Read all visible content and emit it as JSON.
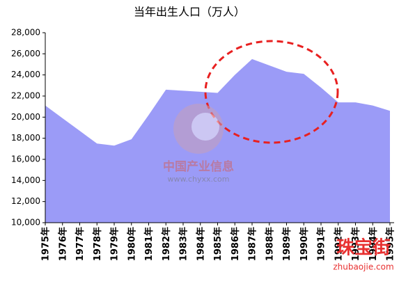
{
  "chart_data": {
    "type": "area",
    "title": "当年出生人口（万人）",
    "categories": [
      "1975年",
      "1976年",
      "1977年",
      "1978年",
      "1979年",
      "1980年",
      "1981年",
      "1982年",
      "1983年",
      "1984年",
      "1985年",
      "1986年",
      "1987年",
      "1988年",
      "1989年",
      "1990年",
      "1991年",
      "1992年",
      "1993年",
      "1994年",
      "1995年"
    ],
    "values": [
      21100,
      19900,
      18700,
      17500,
      17300,
      17900,
      20200,
      22600,
      22500,
      22400,
      22300,
      24000,
      25500,
      24900,
      24300,
      24100,
      22800,
      21400,
      21400,
      21100,
      20600
    ],
    "color": "#9b9bf7",
    "ylim": [
      10000,
      28000
    ],
    "yticks": [
      {
        "value": 10000,
        "label": "10,000"
      },
      {
        "value": 12000,
        "label": "12,000"
      },
      {
        "value": 14000,
        "label": "14,000"
      },
      {
        "value": 16000,
        "label": "16,000"
      },
      {
        "value": 18000,
        "label": "18,000"
      },
      {
        "value": 20000,
        "label": "20,000"
      },
      {
        "value": 22000,
        "label": "22,000"
      },
      {
        "value": 24000,
        "label": "24,000"
      },
      {
        "value": 26000,
        "label": "26,000"
      },
      {
        "value": 28000,
        "label": "28,000"
      }
    ],
    "grid": false
  },
  "watermarks": {
    "site_name": "中国产业信息",
    "site_url": "www.chyxx.com",
    "brand": "珠宝街",
    "brand_url": "zhubaojie.com"
  }
}
